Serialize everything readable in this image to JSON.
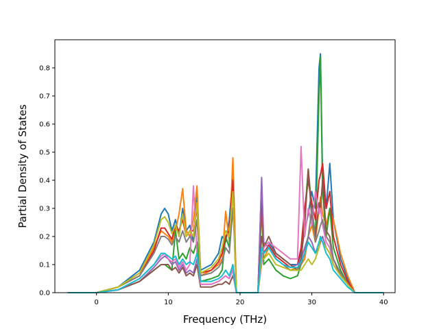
{
  "chart_data": {
    "type": "line",
    "title": "",
    "xlabel": "Frequency (THz)",
    "ylabel": "Partial Density of States",
    "xlim": [
      -5.8,
      41.6
    ],
    "ylim": [
      0.0,
      0.9
    ],
    "xticks": [
      0,
      10,
      20,
      30,
      40
    ],
    "yticks": [
      0.0,
      0.1,
      0.2,
      0.3,
      0.4,
      0.5,
      0.6,
      0.7,
      0.8
    ],
    "ytick_labels": [
      "0.0",
      "0.1",
      "0.2",
      "0.3",
      "0.4",
      "0.5",
      "0.6",
      "0.7",
      "0.8"
    ],
    "grid": false,
    "legend": "none",
    "series": [
      {
        "color": "#1f77b4",
        "x": [
          -4,
          0,
          3,
          6,
          8,
          9,
          9.5,
          10,
          10.5,
          11,
          11.5,
          12,
          12.5,
          13,
          13.5,
          14,
          14.5,
          16,
          17,
          17.5,
          18,
          18.5,
          19,
          19.2,
          19.5,
          20,
          22.5,
          23,
          23.3,
          24,
          25,
          26,
          27,
          28,
          28.5,
          29,
          29.5,
          30,
          30.5,
          31,
          31.2,
          31.5,
          32,
          32.5,
          33,
          34,
          35,
          36,
          40
        ],
        "y": [
          0,
          0,
          0.02,
          0.08,
          0.18,
          0.28,
          0.3,
          0.28,
          0.22,
          0.26,
          0.2,
          0.3,
          0.22,
          0.24,
          0.18,
          0.36,
          0.08,
          0.1,
          0.14,
          0.2,
          0.18,
          0.26,
          0.42,
          0.2,
          0,
          0,
          0,
          0.4,
          0.16,
          0.18,
          0.14,
          0.12,
          0.1,
          0.1,
          0.14,
          0.22,
          0.28,
          0.36,
          0.3,
          0.8,
          0.85,
          0.4,
          0.3,
          0.46,
          0.26,
          0.12,
          0.05,
          0,
          0
        ]
      },
      {
        "color": "#ff7f0e",
        "x": [
          -4,
          0,
          3,
          6,
          8,
          9,
          9.5,
          10,
          10.5,
          11,
          11.5,
          12,
          12.5,
          13,
          13.5,
          14,
          14.5,
          16,
          17,
          17.5,
          18,
          18.5,
          19,
          19.2,
          19.5,
          20,
          22.5,
          23,
          23.3,
          24,
          25,
          26,
          27,
          28,
          28.5,
          29,
          29.5,
          30,
          30.5,
          31,
          31.2,
          31.5,
          32,
          32.5,
          33,
          34,
          35,
          36,
          40
        ],
        "y": [
          0,
          0,
          0.02,
          0.07,
          0.16,
          0.22,
          0.21,
          0.2,
          0.18,
          0.22,
          0.28,
          0.37,
          0.22,
          0.2,
          0.26,
          0.38,
          0.06,
          0.08,
          0.1,
          0.12,
          0.29,
          0.18,
          0.48,
          0.3,
          0,
          0,
          0,
          0.38,
          0.12,
          0.16,
          0.12,
          0.1,
          0.08,
          0.09,
          0.1,
          0.12,
          0.2,
          0.24,
          0.18,
          0.3,
          0.34,
          0.28,
          0.24,
          0.3,
          0.26,
          0.14,
          0.06,
          0,
          0
        ]
      },
      {
        "color": "#2ca02c",
        "x": [
          -4,
          0,
          3,
          6,
          8,
          9,
          9.5,
          10,
          10.5,
          11,
          11.5,
          12,
          12.5,
          13,
          13.5,
          14,
          14.5,
          16,
          17,
          17.5,
          18,
          18.5,
          19,
          19.2,
          19.5,
          20,
          22.5,
          23,
          23.3,
          24,
          25,
          26,
          27,
          28,
          28.5,
          29,
          29.5,
          30,
          30.5,
          31,
          31.2,
          31.5,
          32,
          32.5,
          33,
          34,
          35,
          36,
          40
        ],
        "y": [
          0,
          0,
          0.01,
          0.04,
          0.08,
          0.1,
          0.1,
          0.09,
          0.08,
          0.22,
          0.12,
          0.14,
          0.12,
          0.16,
          0.14,
          0.18,
          0.04,
          0.05,
          0.06,
          0.08,
          0.2,
          0.16,
          0.38,
          0.22,
          0,
          0,
          0,
          0.3,
          0.1,
          0.12,
          0.08,
          0.06,
          0.05,
          0.06,
          0.1,
          0.28,
          0.44,
          0.3,
          0.2,
          0.7,
          0.84,
          0.36,
          0.2,
          0.3,
          0.16,
          0.08,
          0.03,
          0,
          0
        ]
      },
      {
        "color": "#d62728",
        "x": [
          -4,
          0,
          3,
          6,
          8,
          9,
          9.5,
          10,
          10.5,
          11,
          11.5,
          12,
          12.5,
          13,
          13.5,
          14,
          14.5,
          16,
          17,
          17.5,
          18,
          18.5,
          19,
          19.2,
          19.5,
          20,
          22.5,
          23,
          23.3,
          24,
          25,
          26,
          27,
          28,
          28.5,
          29,
          29.5,
          30,
          30.5,
          31,
          31.2,
          31.5,
          32,
          32.5,
          33,
          34,
          35,
          36,
          40
        ],
        "y": [
          0,
          0,
          0.02,
          0.06,
          0.15,
          0.23,
          0.23,
          0.21,
          0.19,
          0.24,
          0.22,
          0.26,
          0.2,
          0.22,
          0.22,
          0.3,
          0.07,
          0.08,
          0.11,
          0.14,
          0.2,
          0.22,
          0.4,
          0.24,
          0,
          0,
          0,
          0.36,
          0.14,
          0.17,
          0.13,
          0.11,
          0.09,
          0.1,
          0.16,
          0.3,
          0.4,
          0.32,
          0.26,
          0.4,
          0.42,
          0.46,
          0.3,
          0.36,
          0.2,
          0.1,
          0.04,
          0,
          0
        ]
      },
      {
        "color": "#9467bd",
        "x": [
          -4,
          0,
          3,
          6,
          8,
          9,
          9.5,
          10,
          10.5,
          11,
          11.5,
          12,
          12.5,
          13,
          13.5,
          14,
          14.5,
          16,
          17,
          17.5,
          18,
          18.5,
          19,
          19.2,
          19.5,
          20,
          22.5,
          23,
          23.3,
          24,
          25,
          26,
          27,
          28,
          28.5,
          29,
          29.5,
          30,
          30.5,
          31,
          31.2,
          31.5,
          32,
          32.5,
          33,
          34,
          35,
          36,
          40
        ],
        "y": [
          0,
          0,
          0.01,
          0.04,
          0.09,
          0.12,
          0.13,
          0.12,
          0.1,
          0.11,
          0.08,
          0.1,
          0.07,
          0.08,
          0.07,
          0.12,
          0.03,
          0.03,
          0.04,
          0.05,
          0.06,
          0.05,
          0.1,
          0.06,
          0,
          0,
          0,
          0.41,
          0.18,
          0.16,
          0.12,
          0.1,
          0.09,
          0.1,
          0.12,
          0.16,
          0.2,
          0.18,
          0.14,
          0.16,
          0.18,
          0.2,
          0.16,
          0.14,
          0.1,
          0.06,
          0.03,
          0,
          0
        ]
      },
      {
        "color": "#8c564b",
        "x": [
          -4,
          0,
          3,
          6,
          8,
          9,
          9.5,
          10,
          10.5,
          11,
          11.5,
          12,
          12.5,
          13,
          13.5,
          14,
          14.5,
          16,
          17,
          17.5,
          18,
          18.5,
          19,
          19.2,
          19.5,
          20,
          22.5,
          23,
          23.3,
          24,
          25,
          26,
          27,
          28,
          28.5,
          29,
          29.5,
          30,
          30.5,
          31,
          31.2,
          31.5,
          32,
          32.5,
          33,
          34,
          35,
          36,
          40
        ],
        "y": [
          0,
          0,
          0.01,
          0.04,
          0.08,
          0.1,
          0.1,
          0.1,
          0.08,
          0.09,
          0.07,
          0.09,
          0.06,
          0.07,
          0.06,
          0.1,
          0.02,
          0.02,
          0.03,
          0.03,
          0.04,
          0.03,
          0.06,
          0.04,
          0,
          0,
          0,
          0.2,
          0.16,
          0.2,
          0.14,
          0.12,
          0.1,
          0.08,
          0.12,
          0.24,
          0.44,
          0.26,
          0.2,
          0.32,
          0.3,
          0.4,
          0.22,
          0.2,
          0.12,
          0.06,
          0.03,
          0,
          0
        ]
      },
      {
        "color": "#e377c2",
        "x": [
          -4,
          0,
          3,
          6,
          8,
          9,
          9.5,
          10,
          10.5,
          11,
          11.5,
          12,
          12.5,
          13,
          13.5,
          14,
          14.5,
          16,
          17,
          17.5,
          18,
          18.5,
          19,
          19.2,
          19.5,
          20,
          22.5,
          23,
          23.3,
          24,
          25,
          26,
          27,
          28,
          28.5,
          29,
          29.5,
          30,
          30.5,
          31,
          31.2,
          31.5,
          32,
          32.5,
          33,
          34,
          35,
          36,
          40
        ],
        "y": [
          0,
          0,
          0.01,
          0.05,
          0.1,
          0.13,
          0.14,
          0.12,
          0.11,
          0.12,
          0.09,
          0.11,
          0.08,
          0.1,
          0.38,
          0.14,
          0.03,
          0.03,
          0.04,
          0.05,
          0.06,
          0.05,
          0.08,
          0.04,
          0,
          0,
          0,
          0.1,
          0.16,
          0.18,
          0.16,
          0.14,
          0.12,
          0.12,
          0.52,
          0.2,
          0.3,
          0.24,
          0.36,
          0.28,
          0.3,
          0.24,
          0.18,
          0.16,
          0.1,
          0.06,
          0.03,
          0,
          0
        ]
      },
      {
        "color": "#7f7f7f",
        "x": [
          -4,
          0,
          3,
          6,
          8,
          9,
          9.5,
          10,
          10.5,
          11,
          11.5,
          12,
          12.5,
          13,
          13.5,
          14,
          14.5,
          16,
          17,
          17.5,
          18,
          18.5,
          19,
          19.2,
          19.5,
          20,
          22.5,
          23,
          23.3,
          24,
          25,
          26,
          27,
          28,
          28.5,
          29,
          29.5,
          30,
          30.5,
          31,
          31.2,
          31.5,
          32,
          32.5,
          33,
          34,
          35,
          36,
          40
        ],
        "y": [
          0,
          0,
          0.02,
          0.06,
          0.14,
          0.2,
          0.2,
          0.19,
          0.17,
          0.2,
          0.18,
          0.22,
          0.18,
          0.2,
          0.18,
          0.26,
          0.06,
          0.07,
          0.09,
          0.11,
          0.16,
          0.14,
          0.3,
          0.2,
          0,
          0,
          0,
          0.14,
          0.14,
          0.16,
          0.12,
          0.1,
          0.08,
          0.08,
          0.1,
          0.14,
          0.2,
          0.3,
          0.18,
          0.22,
          0.24,
          0.26,
          0.2,
          0.18,
          0.12,
          0.07,
          0.03,
          0,
          0
        ]
      },
      {
        "color": "#bcbd22",
        "x": [
          -4,
          0,
          3,
          6,
          8,
          9,
          9.5,
          10,
          10.5,
          11,
          11.5,
          12,
          12.5,
          13,
          13.5,
          14,
          14.5,
          16,
          17,
          17.5,
          18,
          18.5,
          19,
          19.2,
          19.5,
          20,
          22.5,
          23,
          23.3,
          24,
          25,
          26,
          27,
          28,
          28.5,
          29,
          29.5,
          30,
          30.5,
          31,
          31.2,
          31.5,
          32,
          32.5,
          33,
          34,
          35,
          36,
          40
        ],
        "y": [
          0,
          0,
          0.02,
          0.07,
          0.17,
          0.26,
          0.27,
          0.25,
          0.21,
          0.24,
          0.2,
          0.28,
          0.2,
          0.22,
          0.2,
          0.32,
          0.07,
          0.09,
          0.12,
          0.16,
          0.22,
          0.2,
          0.36,
          0.22,
          0,
          0,
          0,
          0.12,
          0.12,
          0.14,
          0.1,
          0.09,
          0.08,
          0.08,
          0.08,
          0.1,
          0.12,
          0.1,
          0.12,
          0.16,
          0.2,
          0.18,
          0.16,
          0.14,
          0.1,
          0.06,
          0.03,
          0,
          0
        ]
      },
      {
        "color": "#17becf",
        "x": [
          -4,
          0,
          3,
          6,
          8,
          9,
          9.5,
          10,
          10.5,
          11,
          11.5,
          12,
          12.5,
          13,
          13.5,
          14,
          14.5,
          16,
          17,
          17.5,
          18,
          18.5,
          19,
          19.2,
          19.5,
          20,
          22.5,
          23,
          23.3,
          24,
          25,
          26,
          27,
          28,
          28.5,
          29,
          29.5,
          30,
          30.5,
          31,
          31.2,
          31.5,
          32,
          32.5,
          33,
          34,
          35,
          36,
          40
        ],
        "y": [
          0,
          0,
          0.01,
          0.05,
          0.1,
          0.14,
          0.14,
          0.13,
          0.12,
          0.13,
          0.1,
          0.12,
          0.1,
          0.11,
          0.1,
          0.14,
          0.04,
          0.04,
          0.05,
          0.06,
          0.08,
          0.06,
          0.1,
          0.05,
          0,
          0,
          0,
          0.16,
          0.14,
          0.16,
          0.12,
          0.1,
          0.09,
          0.09,
          0.11,
          0.14,
          0.18,
          0.16,
          0.14,
          0.18,
          0.2,
          0.18,
          0.14,
          0.12,
          0.08,
          0.05,
          0.02,
          0,
          0
        ]
      }
    ]
  }
}
